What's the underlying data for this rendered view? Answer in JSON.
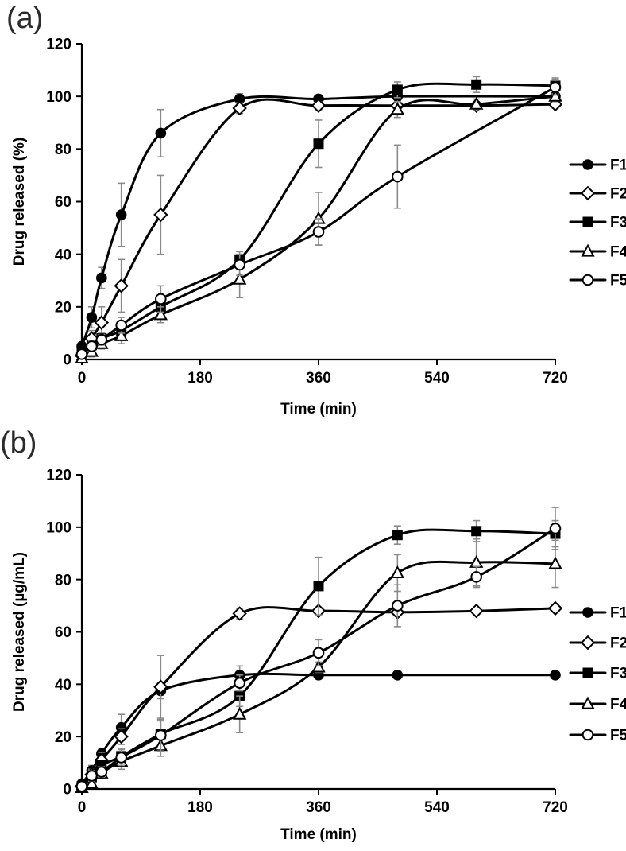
{
  "colors": {
    "line": "#000000",
    "error_bar": "#8a8a8a",
    "background": "#ffffff",
    "marker_open_fill": "#ffffff"
  },
  "chart_data": [
    {
      "id": "a",
      "panel_label": "(a)",
      "type": "line",
      "title": "",
      "xlabel": "Time (min)",
      "ylabel": "Drug released (%)",
      "xlim": [
        0,
        720
      ],
      "ylim": [
        0,
        120
      ],
      "xticks": [
        0,
        180,
        360,
        540,
        720
      ],
      "yticks": [
        0,
        20,
        40,
        60,
        80,
        100,
        120
      ],
      "grid": false,
      "legend_position": "right",
      "legend_entries": [
        "F1",
        "F2",
        "F3",
        "F4",
        "F5"
      ],
      "series": [
        {
          "name": "F1",
          "marker": "filled-circle",
          "points": [
            {
              "t": 0,
              "y": 5
            },
            {
              "t": 15,
              "y": 16,
              "e": 4
            },
            {
              "t": 30,
              "y": 31,
              "e": 4
            },
            {
              "t": 60,
              "y": 55,
              "e": 12
            },
            {
              "t": 120,
              "y": 86,
              "e": 9
            },
            {
              "t": 240,
              "y": 99,
              "e": 2
            },
            {
              "t": 360,
              "y": 99,
              "e": 1.5
            },
            {
              "t": 480,
              "y": 100,
              "e": 1.5
            },
            {
              "t": 720,
              "y": 100,
              "e": 1.5
            }
          ]
        },
        {
          "name": "F2",
          "marker": "open-diamond",
          "points": [
            {
              "t": 0,
              "y": 1.5
            },
            {
              "t": 15,
              "y": 8,
              "e": 3
            },
            {
              "t": 30,
              "y": 14,
              "e": 6
            },
            {
              "t": 60,
              "y": 28,
              "e": 10
            },
            {
              "t": 120,
              "y": 55,
              "e": 15
            },
            {
              "t": 240,
              "y": 95.5,
              "e": 2
            },
            {
              "t": 360,
              "y": 96.5,
              "e": 1.5
            },
            {
              "t": 480,
              "y": 96.5,
              "e": 1.5
            },
            {
              "t": 600,
              "y": 96.5,
              "e": 1.5
            },
            {
              "t": 720,
              "y": 97,
              "e": 1.5
            }
          ]
        },
        {
          "name": "F3",
          "marker": "filled-square",
          "points": [
            {
              "t": 0,
              "y": 4
            },
            {
              "t": 15,
              "y": 5.5
            },
            {
              "t": 30,
              "y": 8,
              "e": 2
            },
            {
              "t": 60,
              "y": 11,
              "e": 2
            },
            {
              "t": 120,
              "y": 20,
              "e": 3
            },
            {
              "t": 240,
              "y": 38,
              "e": 3
            },
            {
              "t": 360,
              "y": 82,
              "e": 9
            },
            {
              "t": 480,
              "y": 102.5,
              "e": 3
            },
            {
              "t": 600,
              "y": 104.5,
              "e": 3
            },
            {
              "t": 720,
              "y": 104,
              "e": 3
            }
          ]
        },
        {
          "name": "F4",
          "marker": "open-triangle",
          "points": [
            {
              "t": 0,
              "y": 0.5
            },
            {
              "t": 15,
              "y": 3,
              "e": 2
            },
            {
              "t": 30,
              "y": 6,
              "e": 2
            },
            {
              "t": 60,
              "y": 9,
              "e": 3
            },
            {
              "t": 120,
              "y": 17,
              "e": 3
            },
            {
              "t": 240,
              "y": 30.5,
              "e": 7
            },
            {
              "t": 360,
              "y": 53.5,
              "e": 10
            },
            {
              "t": 480,
              "y": 95,
              "e": 3
            },
            {
              "t": 600,
              "y": 97,
              "e": 2
            },
            {
              "t": 720,
              "y": 100,
              "e": 2
            }
          ]
        },
        {
          "name": "F5",
          "marker": "open-circle",
          "points": [
            {
              "t": 0,
              "y": 2
            },
            {
              "t": 15,
              "y": 5,
              "e": 2
            },
            {
              "t": 30,
              "y": 7.5,
              "e": 2
            },
            {
              "t": 60,
              "y": 13,
              "e": 3
            },
            {
              "t": 120,
              "y": 23,
              "e": 5
            },
            {
              "t": 240,
              "y": 36,
              "e": 4
            },
            {
              "t": 360,
              "y": 48.5,
              "e": 5
            },
            {
              "t": 480,
              "y": 69.5,
              "e": 12
            },
            {
              "t": 720,
              "y": 103.5,
              "e": 3
            }
          ]
        }
      ]
    },
    {
      "id": "b",
      "panel_label": "(b)",
      "type": "line",
      "title": "",
      "xlabel": "Time (min)",
      "ylabel": "Drug released (µg/mL)",
      "xlim": [
        0,
        720
      ],
      "ylim": [
        0,
        120
      ],
      "xticks": [
        0,
        180,
        360,
        540,
        720
      ],
      "yticks": [
        0,
        20,
        40,
        60,
        80,
        100,
        120
      ],
      "grid": false,
      "legend_position": "right",
      "legend_entries": [
        "F1",
        "F2",
        "F3",
        "F4",
        "F5"
      ],
      "series": [
        {
          "name": "F1",
          "marker": "filled-circle",
          "points": [
            {
              "t": 0,
              "y": 2
            },
            {
              "t": 15,
              "y": 7,
              "e": 2
            },
            {
              "t": 30,
              "y": 13.5,
              "e": 2
            },
            {
              "t": 60,
              "y": 23.5,
              "e": 5
            },
            {
              "t": 120,
              "y": 37.5,
              "e": 3
            },
            {
              "t": 240,
              "y": 43.5,
              "e": 3.5
            },
            {
              "t": 360,
              "y": 43.5
            },
            {
              "t": 480,
              "y": 43.5
            },
            {
              "t": 720,
              "y": 43.5
            }
          ]
        },
        {
          "name": "F2",
          "marker": "open-diamond",
          "points": [
            {
              "t": 0,
              "y": 1
            },
            {
              "t": 15,
              "y": 5.5,
              "e": 2
            },
            {
              "t": 30,
              "y": 11,
              "e": 3
            },
            {
              "t": 60,
              "y": 20,
              "e": 3
            },
            {
              "t": 120,
              "y": 39,
              "e": 12
            },
            {
              "t": 240,
              "y": 67,
              "e": 2
            },
            {
              "t": 360,
              "y": 68
            },
            {
              "t": 480,
              "y": 67.5
            },
            {
              "t": 600,
              "y": 68
            },
            {
              "t": 720,
              "y": 69
            }
          ]
        },
        {
          "name": "F3",
          "marker": "filled-square",
          "points": [
            {
              "t": 0,
              "y": 1
            },
            {
              "t": 15,
              "y": 4.5
            },
            {
              "t": 30,
              "y": 9,
              "e": 2
            },
            {
              "t": 60,
              "y": 12.5,
              "e": 3
            },
            {
              "t": 120,
              "y": 21,
              "e": 5
            },
            {
              "t": 240,
              "y": 35.5,
              "e": 4
            },
            {
              "t": 360,
              "y": 77.5,
              "e": 11
            },
            {
              "t": 480,
              "y": 97,
              "e": 3.5
            },
            {
              "t": 600,
              "y": 98.5,
              "e": 4
            },
            {
              "t": 720,
              "y": 97.5,
              "e": 5
            }
          ]
        },
        {
          "name": "F4",
          "marker": "open-triangle",
          "points": [
            {
              "t": 0,
              "y": 0.5
            },
            {
              "t": 15,
              "y": 2
            },
            {
              "t": 30,
              "y": 6,
              "e": 2
            },
            {
              "t": 60,
              "y": 10.5,
              "e": 3
            },
            {
              "t": 120,
              "y": 16.5,
              "e": 4
            },
            {
              "t": 240,
              "y": 28.5,
              "e": 7
            },
            {
              "t": 360,
              "y": 46.5,
              "e": 2
            },
            {
              "t": 480,
              "y": 82.5,
              "e": 7
            },
            {
              "t": 600,
              "y": 86.5,
              "e": 9
            },
            {
              "t": 720,
              "y": 86,
              "e": 9
            }
          ]
        },
        {
          "name": "F5",
          "marker": "open-circle",
          "points": [
            {
              "t": 0,
              "y": 1
            },
            {
              "t": 15,
              "y": 5,
              "e": 2
            },
            {
              "t": 30,
              "y": 6.5,
              "e": 2
            },
            {
              "t": 60,
              "y": 12,
              "e": 3
            },
            {
              "t": 120,
              "y": 20.5,
              "e": 6
            },
            {
              "t": 240,
              "y": 40.5,
              "e": 3
            },
            {
              "t": 360,
              "y": 52,
              "e": 5
            },
            {
              "t": 480,
              "y": 70,
              "e": 8
            },
            {
              "t": 600,
              "y": 81,
              "e": 4
            },
            {
              "t": 720,
              "y": 99.5,
              "e": 8
            }
          ]
        }
      ]
    }
  ]
}
